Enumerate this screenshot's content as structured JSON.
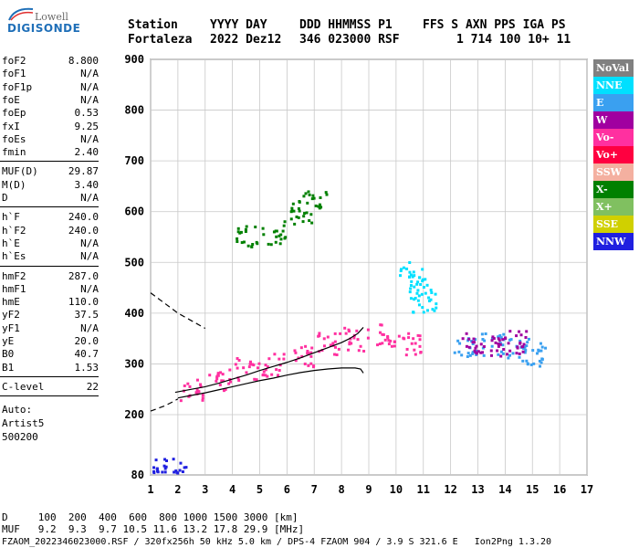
{
  "logo": {
    "top": "Lowell",
    "bottom": "DIGISONDE"
  },
  "header": {
    "row1": [
      "Station",
      "YYYY DAY",
      "DDD HHMMSS P1",
      "FFS S AXN PPS IGA PS"
    ],
    "row2": [
      "Fortaleza",
      "2022 Dez12",
      "346 023000 RSF",
      "1 714 100 10+ 11"
    ]
  },
  "params_group1": [
    {
      "label": "foF2",
      "value": "8.800"
    },
    {
      "label": "foF1",
      "value": "N/A"
    },
    {
      "label": "foF1p",
      "value": "N/A"
    },
    {
      "label": "foE",
      "value": "N/A"
    },
    {
      "label": "foEp",
      "value": "0.53"
    },
    {
      "label": "fxI",
      "value": "9.25"
    },
    {
      "label": "foEs",
      "value": "N/A"
    },
    {
      "label": "fmin",
      "value": "2.40"
    }
  ],
  "params_group2": [
    {
      "label": "MUF(D)",
      "value": "29.87"
    },
    {
      "label": "M(D)",
      "value": "3.40"
    },
    {
      "label": "D",
      "value": "N/A"
    }
  ],
  "params_group3": [
    {
      "label": "h`F",
      "value": "240.0"
    },
    {
      "label": "h`F2",
      "value": "240.0"
    },
    {
      "label": "h`E",
      "value": "N/A"
    },
    {
      "label": "h`Es",
      "value": "N/A"
    }
  ],
  "params_group4": [
    {
      "label": "hmF2",
      "value": "287.0"
    },
    {
      "label": "hmF1",
      "value": "N/A"
    },
    {
      "label": "hmE",
      "value": "110.0"
    },
    {
      "label": "yF2",
      "value": "37.5"
    },
    {
      "label": "yF1",
      "value": "N/A"
    },
    {
      "label": "yE",
      "value": "20.0"
    },
    {
      "label": "B0",
      "value": "40.7"
    },
    {
      "label": "B1",
      "value": "1.53"
    }
  ],
  "params_group5": [
    {
      "label": "C-level",
      "value": "22"
    }
  ],
  "autoscaling": {
    "line1": "Auto:",
    "line2": "Artist5",
    "line3": "500200"
  },
  "legend": [
    {
      "label": "NoVal",
      "color": "#808080"
    },
    {
      "label": "NNE",
      "color": "#00e0ff"
    },
    {
      "label": "E",
      "color": "#3aa0f0"
    },
    {
      "label": "W",
      "color": "#a000a0"
    },
    {
      "label": "Vo-",
      "color": "#ff30a0"
    },
    {
      "label": "Vo+",
      "color": "#ff0040"
    },
    {
      "label": "SSW",
      "color": "#f4b0a0"
    },
    {
      "label": "X-",
      "color": "#008000"
    },
    {
      "label": "X+",
      "color": "#80c060"
    },
    {
      "label": "SSE",
      "color": "#d0d000"
    },
    {
      "label": "NNW",
      "color": "#2020e0"
    }
  ],
  "bottom": {
    "d_row": "D     100  200  400  600  800 1000 1500 3000 [km]",
    "muf_row": "MUF   9.2  9.3  9.7 10.5 11.6 13.2 17.8 29.9 [MHz]",
    "footer": "FZAOM_2022346023000.RSF / 320fx256h 50 kHz 5.0 km / DPS-4 FZAOM 904 / 3.9 S 321.6 E   Ion2Png 1.3.20"
  },
  "chart_data": {
    "type": "scatter",
    "xlabel": "",
    "ylabel": "",
    "xlim": [
      1,
      17
    ],
    "ylim": [
      80,
      900
    ],
    "x_ticks": [
      1,
      2,
      3,
      4,
      5,
      6,
      7,
      8,
      9,
      10,
      11,
      12,
      13,
      14,
      15,
      16,
      17
    ],
    "y_ticks": [
      80,
      200,
      300,
      400,
      500,
      600,
      700,
      800,
      900
    ],
    "grid": true,
    "legend_position": "right",
    "traces": [
      {
        "name": "O-trace (black)",
        "x": [
          1.9,
          2.5,
          3.0,
          3.5,
          4.0,
          4.5,
          5.0,
          5.5,
          6.0,
          6.5,
          7.0,
          7.5,
          8.0,
          8.3,
          8.6,
          8.8
        ],
        "y": [
          244,
          250,
          255,
          262,
          270,
          278,
          287,
          295,
          303,
          312,
          322,
          332,
          342,
          350,
          360,
          372
        ]
      },
      {
        "name": "X-trace (black)",
        "x": [
          2.0,
          2.5,
          3.0,
          3.5,
          4.0,
          4.5,
          5.0,
          5.5,
          6.0,
          6.5,
          7.0,
          7.5,
          8.0,
          8.5,
          8.7,
          8.8
        ],
        "y": [
          233,
          238,
          243,
          249,
          255,
          261,
          267,
          272,
          278,
          283,
          287,
          290,
          292,
          292,
          290,
          282
        ]
      },
      {
        "name": "profile (dashed)",
        "x": [
          1.0,
          1.5,
          2.0,
          2.5,
          3.0
        ],
        "y": [
          440,
          420,
          400,
          385,
          370
        ]
      },
      {
        "name": "extrapolation (dashed)",
        "x": [
          1.0,
          1.5,
          1.8,
          2.0
        ],
        "y": [
          207,
          217,
          225,
          231
        ]
      }
    ],
    "echo_clusters": [
      {
        "name": "Vo-",
        "color": "#ff30a0",
        "x": [
          2.5,
          3.5,
          4.5,
          5.5,
          6.5,
          7.5,
          8.5,
          9.5,
          10.5
        ],
        "y": [
          250,
          270,
          290,
          300,
          320,
          340,
          350,
          360,
          340
        ]
      },
      {
        "name": "E",
        "color": "#3aa0f0",
        "x": [
          12.5,
          13.5,
          14.5,
          15.0
        ],
        "y": [
          330,
          340,
          330,
          320
        ]
      },
      {
        "name": "W",
        "color": "#a000a0",
        "x": [
          12.8,
          13.8,
          14.3
        ],
        "y": [
          340,
          335,
          345
        ]
      },
      {
        "name": "NNE",
        "color": "#00e0ff",
        "x": [
          10.5,
          11.0,
          10.8
        ],
        "y": [
          480,
          420,
          450
        ]
      },
      {
        "name": "X-",
        "color": "#008000",
        "x": [
          4.5,
          5.5,
          6.5,
          7.0
        ],
        "y": [
          550,
          560,
          600,
          620
        ]
      },
      {
        "name": "NNW",
        "color": "#2020e0",
        "x": [
          1.5,
          1.9
        ],
        "y": [
          90,
          92
        ]
      }
    ]
  }
}
